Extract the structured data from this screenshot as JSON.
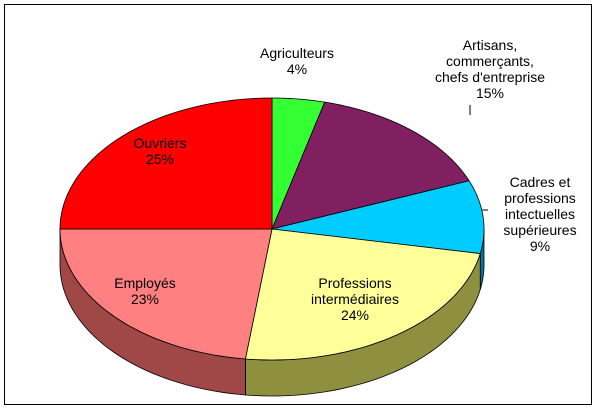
{
  "chart_data": {
    "type": "pie3d",
    "categories": [
      "Agriculteurs",
      "Artisans,\ncommerçants,\nchefs d'entreprise",
      "Cadres et\nprofessions\nintectuelles\nsupérieures",
      "Professions\nintermédiaires",
      "Employés",
      "Ouvriers"
    ],
    "values": [
      4,
      15,
      9,
      24,
      23,
      25
    ],
    "value_labels": [
      "4%",
      "15%",
      "9%",
      "24%",
      "23%",
      "25%"
    ],
    "colors": [
      "#33ff33",
      "#802060",
      "#00ccff",
      "#ffff99",
      "#ff8080",
      "#ff0000"
    ],
    "side_colors": [
      "#1a9a1a",
      "#4a1238",
      "#0077a0",
      "#8f8f40",
      "#a04848",
      "#990000"
    ]
  }
}
